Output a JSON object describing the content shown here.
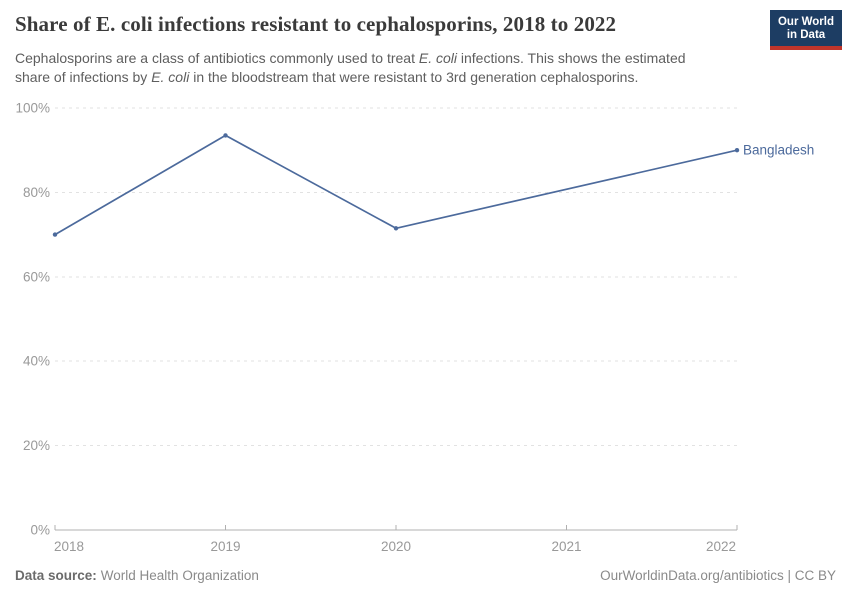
{
  "chart_data": {
    "type": "line",
    "title": "Share of E. coli infections resistant to cephalosporins, 2018 to 2022",
    "subtitle_lines": [
      [
        {
          "text": "Cephalosporins are a class of antibiotics commonly used to treat "
        },
        {
          "text": "E. coli",
          "italic": true
        },
        {
          "text": " infections. This shows the estimated"
        }
      ],
      [
        {
          "text": "share of infections by "
        },
        {
          "text": "E. coli",
          "italic": true
        },
        {
          "text": " in the bloodstream that were resistant to 3rd generation cephalosporins."
        }
      ]
    ],
    "xlim": [
      2018,
      2022
    ],
    "ylim": [
      0,
      100
    ],
    "xticks": [
      2018,
      2019,
      2020,
      2021,
      2022
    ],
    "yticks": [
      0,
      20,
      40,
      60,
      80,
      100
    ],
    "ytick_suffix": "%",
    "grid": "horizontal-dashed",
    "legend": "inline-end-label",
    "series": [
      {
        "name": "Bangladesh",
        "color": "#4C6A9C",
        "points": [
          [
            2018,
            70
          ],
          [
            2019,
            93.5
          ],
          [
            2020,
            71.5
          ],
          [
            2022,
            90
          ]
        ],
        "missing_years": [
          2021
        ]
      }
    ]
  },
  "branding": {
    "logo_line1": "Our World",
    "logo_line2": "in Data",
    "logo_navy": "#1d3d63",
    "logo_red": "#c0352b"
  },
  "footer": {
    "data_source_label": "Data source:",
    "data_source_value": "World Health Organization",
    "link": "OurWorldinData.org/antibiotics | CC BY"
  },
  "colors": {
    "line": "#4C6A9C",
    "gridline": "#e2e2e2",
    "axis": "#b0b0b0",
    "tick_label": "#999999",
    "title_text": "#3a3a3a",
    "subtitle_text": "#5e5e5e"
  }
}
